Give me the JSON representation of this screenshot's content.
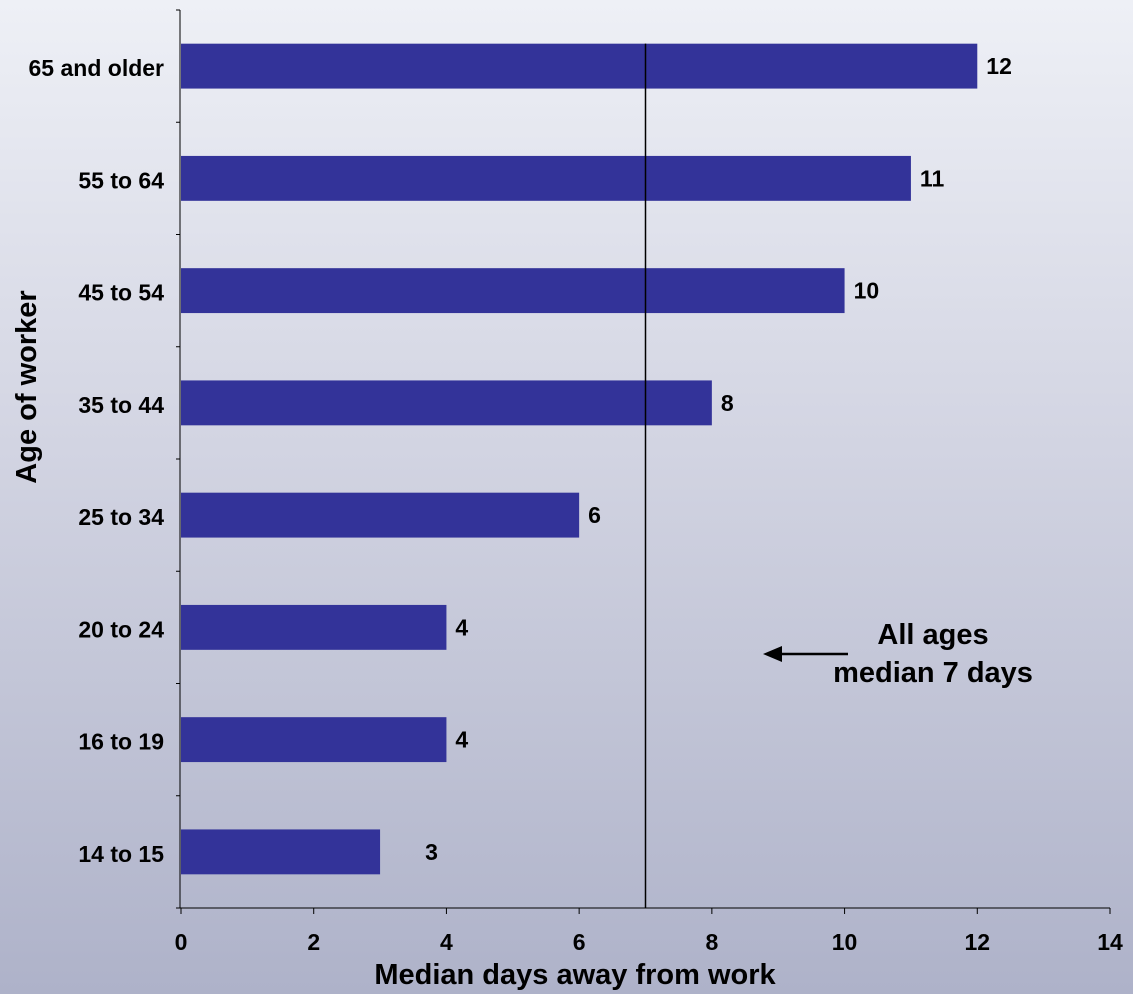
{
  "chart_data": {
    "type": "bar",
    "orientation": "horizontal",
    "categories": [
      "65 and older",
      "55 to 64",
      "45 to 54",
      "35 to 44",
      "25 to 34",
      "20 to 24",
      "16 to 19",
      "14 to 15"
    ],
    "values": [
      12,
      11,
      10,
      8,
      6,
      4,
      4,
      3
    ],
    "data_labels": [
      "12",
      "11",
      "10",
      "8",
      "6",
      "4",
      "4",
      "3"
    ],
    "xlabel": "Median days away from work",
    "ylabel": "Age of worker",
    "xlim": [
      0,
      14
    ],
    "xticks": [
      "0",
      "2",
      "4",
      "6",
      "8",
      "10",
      "12",
      "14"
    ],
    "bar_color": "#333399",
    "grid": false,
    "reference_line": {
      "value": 7
    },
    "annotation": {
      "line1": "All ages",
      "line2": "median 7 days",
      "arrow": "left"
    }
  }
}
